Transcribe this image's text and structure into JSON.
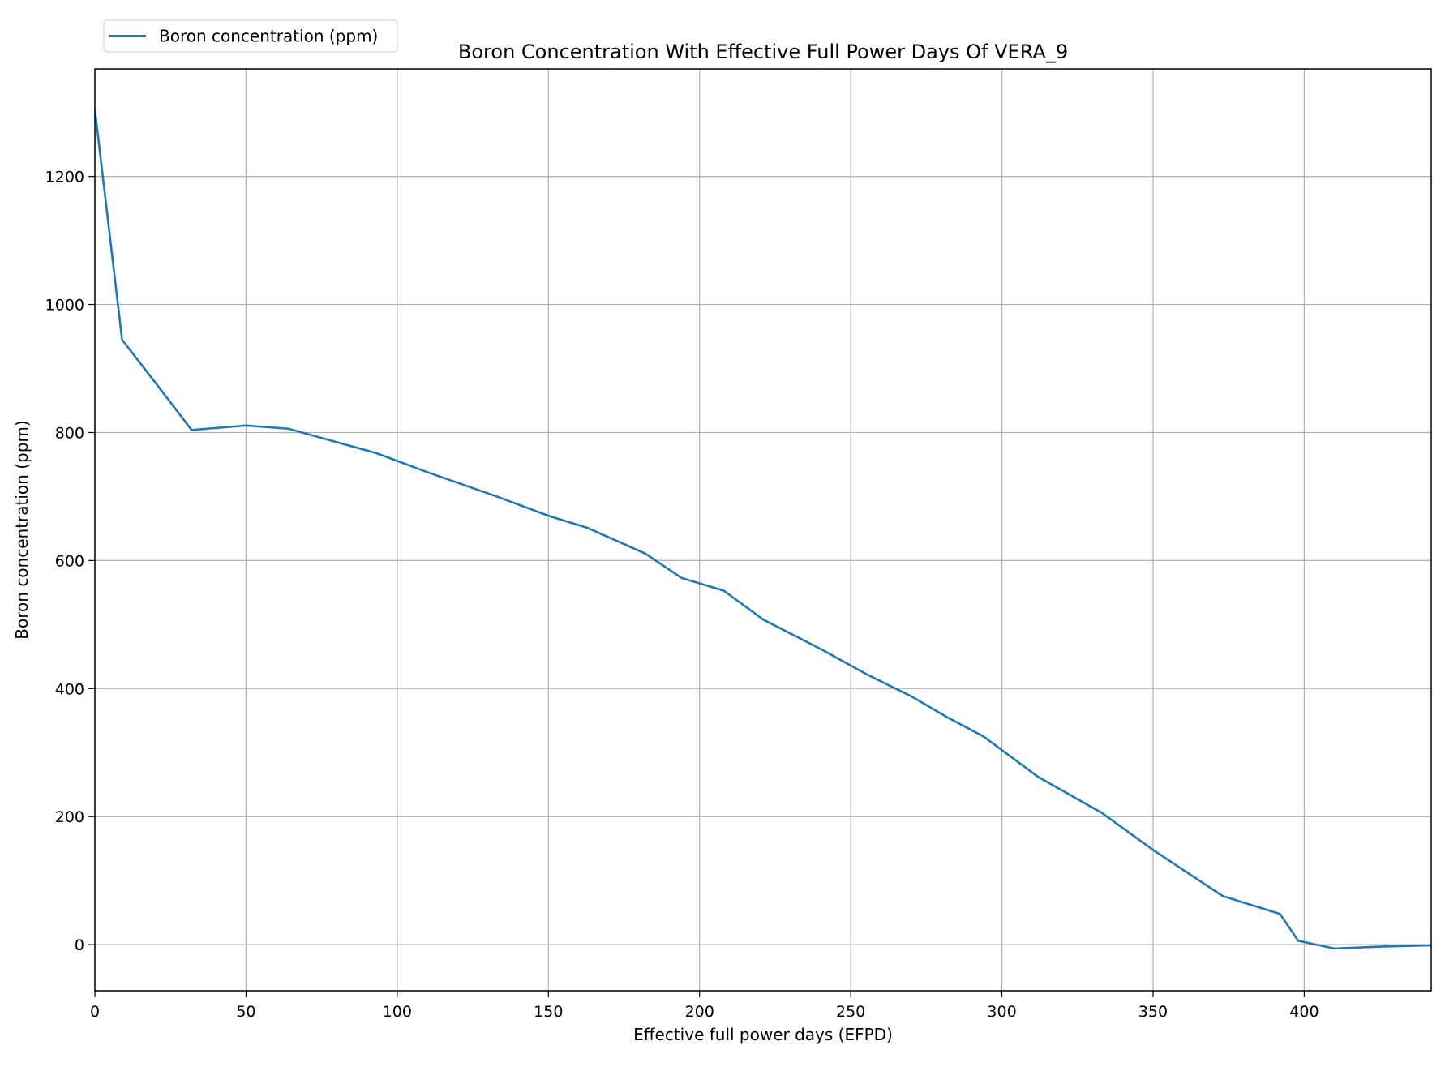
{
  "chart_data": {
    "type": "line",
    "title": "Boron Concentration With Effective Full Power Days Of VERA_9",
    "xlabel": "Effective full power days (EFPD)",
    "ylabel": "Boron concentration (ppm)",
    "xlim": [
      0,
      442
    ],
    "ylim": [
      -72,
      1368
    ],
    "xticks": [
      0,
      50,
      100,
      150,
      200,
      250,
      300,
      350,
      400
    ],
    "yticks": [
      0,
      200,
      400,
      600,
      800,
      1000,
      1200
    ],
    "grid": true,
    "legend_position": "top-left",
    "series": [
      {
        "name": "Boron concentration (ppm)",
        "color": "#1f77b4",
        "x": [
          0,
          9,
          20,
          32,
          50,
          64,
          80,
          93,
          110,
          133,
          150,
          163,
          182,
          194,
          208,
          221,
          240,
          255,
          270,
          282,
          294,
          312,
          333,
          350,
          373,
          392,
          398,
          410,
          425,
          442
        ],
        "y": [
          1305,
          945,
          878,
          804,
          811,
          806,
          785,
          768,
          738,
          700,
          670,
          651,
          611,
          573,
          553,
          508,
          462,
          423,
          388,
          355,
          325,
          262,
          206,
          148,
          76,
          48,
          6,
          -6,
          -3,
          -1
        ]
      }
    ]
  }
}
